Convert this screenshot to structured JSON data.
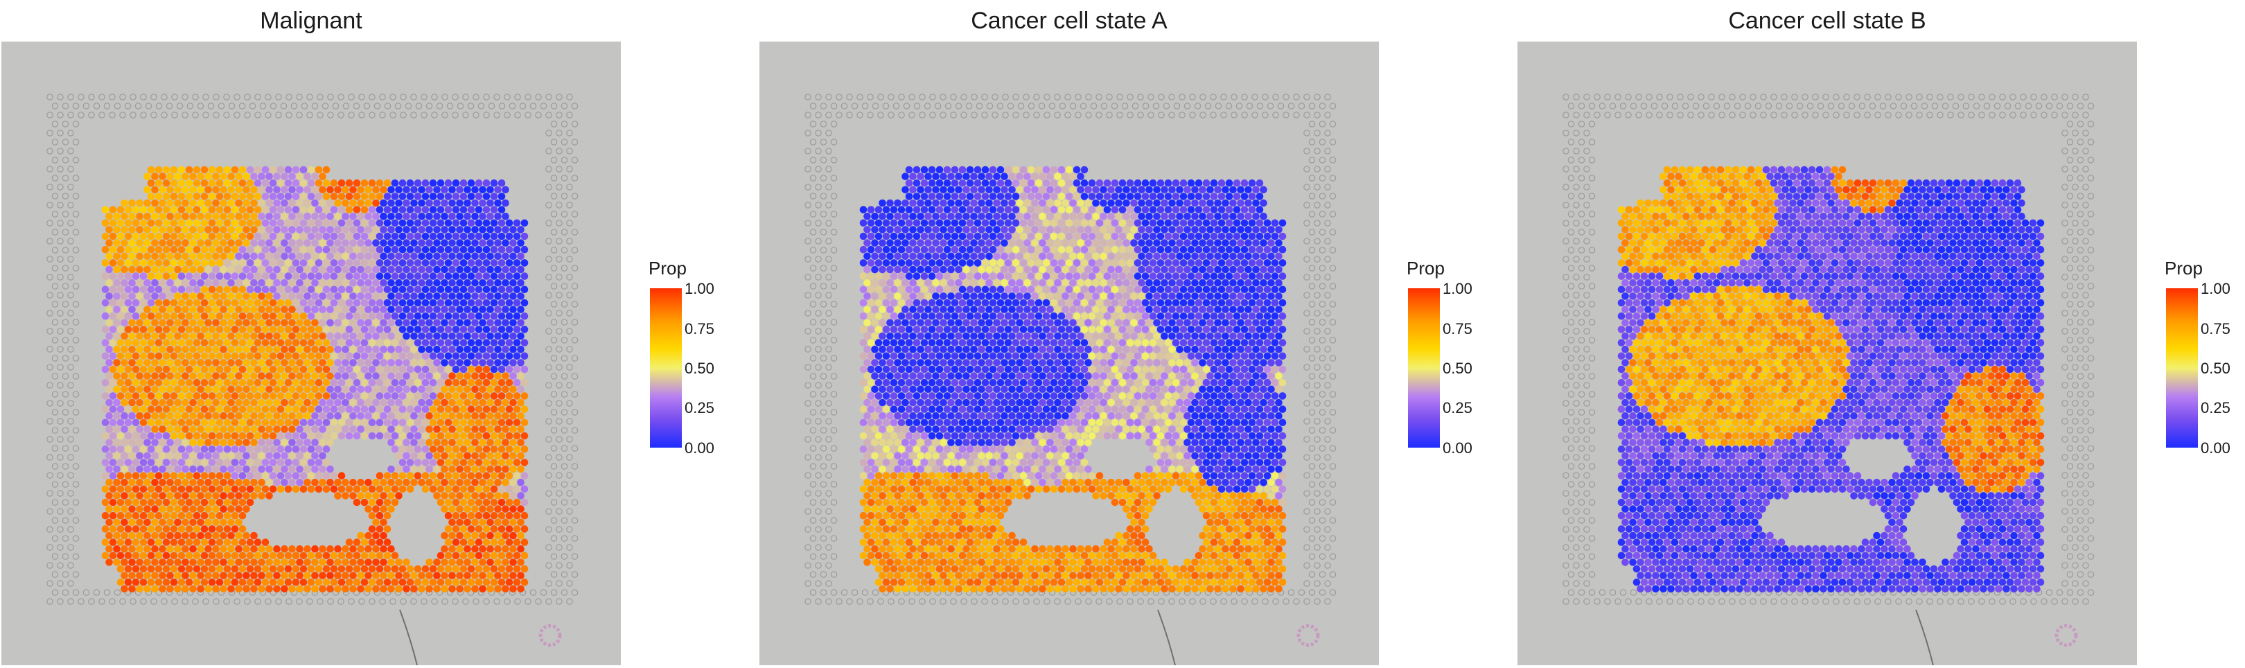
{
  "panels": [
    {
      "title": "Malignant",
      "legend_title": "Prop"
    },
    {
      "title": "Cancer cell state A",
      "legend_title": "Prop"
    },
    {
      "title": "Cancer cell state B",
      "legend_title": "Prop"
    }
  ],
  "legend_ticks": [
    "1.00",
    "0.75",
    "0.50",
    "0.25",
    "0.00"
  ],
  "colors": {
    "low": "#1e2cff",
    "mid_low": "#b77ff2",
    "mid": "#f3f06b",
    "mid_high": "#ffb000",
    "high": "#ff2f00",
    "background": "#c4c5c3"
  },
  "chart_data": [
    {
      "type": "heatmap",
      "title": "Malignant",
      "legend_title": "Prop",
      "value_range": [
        0,
        1
      ],
      "regions": [
        {
          "region": "upper-left cluster",
          "value": 0.75
        },
        {
          "region": "top-center nest",
          "value": 0.85
        },
        {
          "region": "upper-right",
          "value": 0.05
        },
        {
          "region": "mid-left cluster",
          "value": 0.8
        },
        {
          "region": "mid-right nest",
          "value": 0.85
        },
        {
          "region": "lower tumor bed",
          "value": 0.88
        },
        {
          "region": "stroma band",
          "value": 0.35
        }
      ]
    },
    {
      "type": "heatmap",
      "title": "Cancer cell state A",
      "legend_title": "Prop",
      "value_range": [
        0,
        1
      ],
      "regions": [
        {
          "region": "upper-left cluster",
          "value": 0.05
        },
        {
          "region": "top-center nest",
          "value": 0.05
        },
        {
          "region": "upper-right",
          "value": 0.05
        },
        {
          "region": "mid-left cluster",
          "value": 0.05
        },
        {
          "region": "mid-right nest",
          "value": 0.05
        },
        {
          "region": "lower tumor bed",
          "value": 0.8
        },
        {
          "region": "stroma band",
          "value": 0.4
        }
      ]
    },
    {
      "type": "heatmap",
      "title": "Cancer cell state B",
      "legend_title": "Prop",
      "value_range": [
        0,
        1
      ],
      "regions": [
        {
          "region": "upper-left cluster",
          "value": 0.75
        },
        {
          "region": "top-center nest",
          "value": 0.85
        },
        {
          "region": "upper-right",
          "value": 0.05
        },
        {
          "region": "mid-left cluster",
          "value": 0.75
        },
        {
          "region": "mid-right nest",
          "value": 0.85
        },
        {
          "region": "lower tumor bed",
          "value": 0.1
        },
        {
          "region": "stroma band",
          "value": 0.15
        }
      ]
    }
  ]
}
